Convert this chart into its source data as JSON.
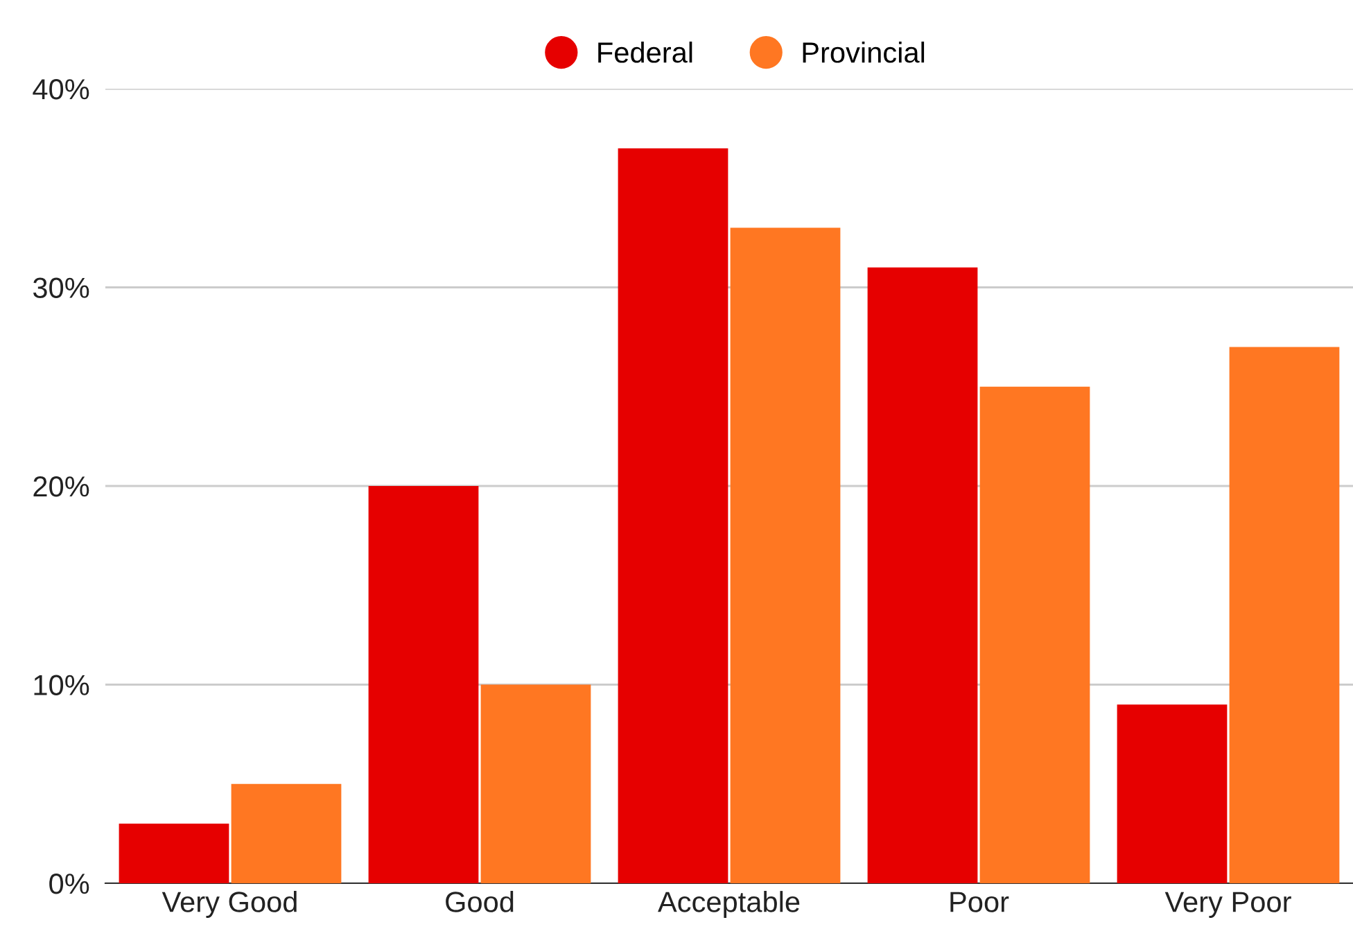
{
  "chart_data": {
    "type": "bar",
    "categories": [
      "Very Good",
      "Good",
      "Acceptable",
      "Poor",
      "Very Poor"
    ],
    "series": [
      {
        "name": "Federal",
        "color": "#e60000",
        "values": [
          3,
          20,
          37,
          31,
          9
        ]
      },
      {
        "name": "Provincial",
        "color": "#ff7722",
        "values": [
          5,
          10,
          33,
          25,
          27
        ]
      }
    ],
    "ylim": [
      0,
      40
    ],
    "yticks": [
      {
        "value": 0,
        "label": "0%"
      },
      {
        "value": 10,
        "label": "10%"
      },
      {
        "value": 20,
        "label": "20%"
      },
      {
        "value": 30,
        "label": "30%"
      },
      {
        "value": 40,
        "label": "40%"
      }
    ],
    "grid": "y",
    "legend": "top"
  }
}
